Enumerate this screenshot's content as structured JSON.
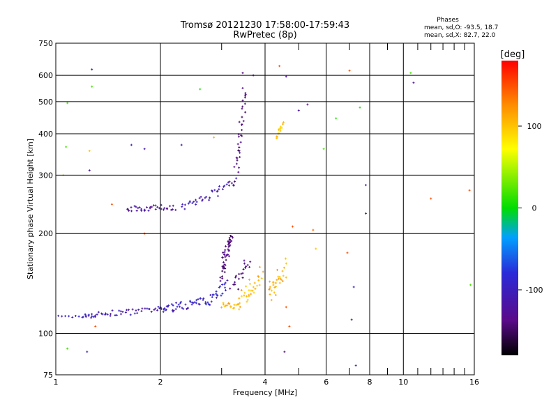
{
  "chart_data": {
    "type": "scatter",
    "title": "Tromsø 20121230 17:58:00-17:59:43",
    "subtitle": "RwPretec (8p)",
    "xlabel": "Frequency [MHz]",
    "ylabel": "Stationary phase Virtual Height [km]",
    "x_scale": "log",
    "y_scale": "log",
    "xlim": [
      1,
      16
    ],
    "ylim": [
      75,
      750
    ],
    "x_ticks": [
      1,
      2,
      4,
      6,
      8,
      10,
      16
    ],
    "x_tick_labels": [
      "1",
      "2",
      "4",
      "6",
      "8",
      "10",
      "16"
    ],
    "x_minor_ticks": [
      3,
      5,
      7,
      9,
      11,
      12,
      13,
      14,
      15
    ],
    "y_ticks": [
      75,
      100,
      200,
      300,
      400,
      500,
      600,
      750
    ],
    "y_tick_labels": [
      "75",
      "100",
      "200",
      "300",
      "400",
      "500",
      "600",
      "750"
    ],
    "grid": true,
    "info": {
      "heading": "Phases",
      "line1": "mean, sd,O: -93.5, 18.7",
      "line2": "mean, sd,X:  82.7, 22.0"
    },
    "colorbar": {
      "label": "[deg]",
      "min": -180,
      "max": 180,
      "ticks": [
        -100,
        0,
        100
      ],
      "tick_labels": [
        "-100",
        "0",
        "100"
      ]
    },
    "traces": [
      {
        "from": [
          1.02,
          112
        ],
        "to": [
          1.3,
          113
        ],
        "color": -100,
        "n": 12,
        "spread": 0.01
      },
      {
        "from": [
          1.2,
          113
        ],
        "to": [
          2.0,
          118
        ],
        "color": -110,
        "n": 45,
        "spread": 0.02
      },
      {
        "from": [
          2.0,
          118
        ],
        "to": [
          2.7,
          125
        ],
        "color": -100,
        "n": 45,
        "spread": 0.03
      },
      {
        "from": [
          2.7,
          125
        ],
        "to": [
          3.1,
          140
        ],
        "color": -90,
        "n": 25,
        "spread": 0.04
      },
      {
        "from": [
          3.0,
          150
        ],
        "to": [
          3.2,
          200
        ],
        "color": -140,
        "n": 50,
        "spread": 0.05
      },
      {
        "from": [
          3.2,
          135
        ],
        "to": [
          3.6,
          165
        ],
        "color": -140,
        "n": 20,
        "spread": 0.05
      },
      {
        "from": [
          3.0,
          122
        ],
        "to": [
          3.4,
          120
        ],
        "color": 110,
        "n": 18,
        "spread": 0.02
      },
      {
        "from": [
          3.4,
          125
        ],
        "to": [
          3.9,
          150
        ],
        "color": 105,
        "n": 30,
        "spread": 0.06
      },
      {
        "from": [
          4.1,
          130
        ],
        "to": [
          4.6,
          160
        ],
        "color": 110,
        "n": 30,
        "spread": 0.06
      },
      {
        "from": [
          4.3,
          385
        ],
        "to": [
          4.5,
          430
        ],
        "color": 100,
        "n": 15,
        "spread": 0.02
      },
      {
        "from": [
          1.6,
          238
        ],
        "to": [
          2.2,
          240
        ],
        "color": -120,
        "n": 35,
        "spread": 0.02
      },
      {
        "from": [
          2.3,
          240
        ],
        "to": [
          2.9,
          265
        ],
        "color": -105,
        "n": 25,
        "spread": 0.03
      },
      {
        "from": [
          2.9,
          265
        ],
        "to": [
          3.3,
          290
        ],
        "color": -110,
        "n": 15,
        "spread": 0.03
      },
      {
        "from": [
          3.3,
          300
        ],
        "to": [
          3.5,
          540
        ],
        "color": -140,
        "n": 35,
        "spread": 0.05
      }
    ],
    "outliers": [
      [
        1.27,
        625,
        -110
      ],
      [
        1.27,
        555,
        20
      ],
      [
        1.08,
        495,
        20
      ],
      [
        1.05,
        300,
        50
      ],
      [
        1.25,
        355,
        100
      ],
      [
        1.25,
        310,
        -120
      ],
      [
        1.07,
        365,
        20
      ],
      [
        1.45,
        245,
        150
      ],
      [
        1.65,
        370,
        -100
      ],
      [
        1.8,
        360,
        -110
      ],
      [
        2.3,
        370,
        -110
      ],
      [
        2.6,
        545,
        10
      ],
      [
        2.85,
        390,
        110
      ],
      [
        1.23,
        88,
        -100
      ],
      [
        1.08,
        90,
        20
      ],
      [
        1.3,
        105,
        150
      ],
      [
        4.55,
        88,
        -140
      ],
      [
        7.3,
        80,
        -110
      ],
      [
        7.0,
        620,
        150
      ],
      [
        7.5,
        480,
        10
      ],
      [
        6.4,
        445,
        10
      ],
      [
        5.3,
        490,
        -130
      ],
      [
        5.0,
        470,
        -120
      ],
      [
        5.9,
        360,
        20
      ],
      [
        4.8,
        210,
        150
      ],
      [
        5.5,
        205,
        140
      ],
      [
        5.6,
        180,
        100
      ],
      [
        6.9,
        175,
        150
      ],
      [
        7.2,
        138,
        -100
      ],
      [
        7.1,
        110,
        -120
      ],
      [
        4.7,
        105,
        150
      ],
      [
        4.6,
        120,
        150
      ],
      [
        7.8,
        280,
        -120
      ],
      [
        7.8,
        230,
        -120
      ],
      [
        10.5,
        610,
        20
      ],
      [
        10.7,
        570,
        -120
      ],
      [
        12.0,
        255,
        150
      ],
      [
        15.5,
        270,
        150
      ],
      [
        15.6,
        140,
        20
      ],
      [
        4.4,
        640,
        150
      ],
      [
        3.45,
        610,
        -140
      ],
      [
        3.7,
        600,
        -140
      ],
      [
        4.6,
        595,
        -120
      ],
      [
        1.8,
        200,
        150
      ]
    ]
  }
}
